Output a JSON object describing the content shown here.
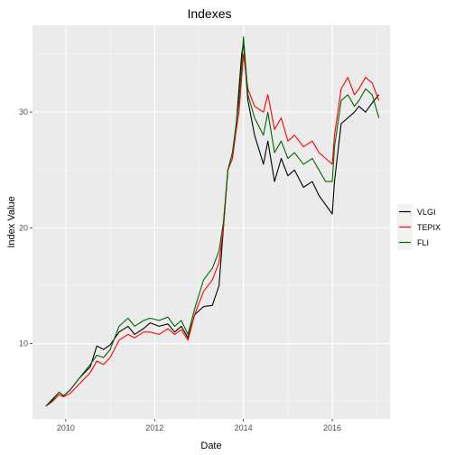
{
  "chart_data": {
    "type": "line",
    "title": "Indexes",
    "xlabel": "Date",
    "ylabel": "Index Value",
    "xlim": [
      2009.25,
      2017.3
    ],
    "ylim": [
      3.5,
      37.5
    ],
    "x_ticks": [
      2010,
      2012,
      2014,
      2016
    ],
    "x_tick_labels": [
      "2010",
      "2012",
      "2014",
      "2016"
    ],
    "y_ticks": [
      10,
      20,
      30
    ],
    "y_tick_labels": [
      "10",
      "20",
      "30"
    ],
    "grid": true,
    "background": "#ebebeb",
    "legend_position": "right",
    "series": [
      {
        "name": "VLGI",
        "color": "#000000",
        "x": [
          2009.55,
          2009.7,
          2009.85,
          2009.95,
          2010.1,
          2010.3,
          2010.55,
          2010.7,
          2010.85,
          2011.0,
          2011.2,
          2011.4,
          2011.55,
          2011.75,
          2011.9,
          2012.1,
          2012.3,
          2012.45,
          2012.6,
          2012.75,
          2012.9,
          2013.1,
          2013.3,
          2013.45,
          2013.55,
          2013.65,
          2013.75,
          2013.82,
          2013.9,
          2013.96,
          2014.0,
          2014.1,
          2014.25,
          2014.45,
          2014.55,
          2014.7,
          2014.85,
          2015.0,
          2015.15,
          2015.35,
          2015.55,
          2015.7,
          2015.85,
          2016.0,
          2016.05,
          2016.2,
          2016.35,
          2016.5,
          2016.6,
          2016.75,
          2016.9,
          2017.05
        ],
        "y": [
          4.6,
          5.2,
          5.8,
          5.5,
          6.0,
          7.0,
          8.0,
          9.8,
          9.5,
          9.9,
          11.0,
          11.5,
          10.8,
          11.3,
          11.8,
          11.5,
          11.7,
          11.0,
          11.5,
          10.5,
          12.5,
          13.2,
          13.3,
          15.0,
          20.0,
          25.0,
          26.0,
          28.0,
          32.0,
          35.0,
          36.0,
          31.0,
          28.0,
          25.5,
          27.5,
          24.0,
          26.0,
          24.5,
          25.0,
          23.5,
          24.0,
          22.8,
          22.0,
          21.2,
          24.0,
          29.0,
          29.5,
          30.0,
          30.5,
          30.0,
          30.8,
          31.5
        ]
      },
      {
        "name": "TEPIX",
        "color": "#ff0000",
        "x": [
          2009.55,
          2009.7,
          2009.85,
          2009.95,
          2010.1,
          2010.3,
          2010.55,
          2010.7,
          2010.85,
          2011.0,
          2011.2,
          2011.4,
          2011.55,
          2011.75,
          2011.9,
          2012.1,
          2012.3,
          2012.45,
          2012.6,
          2012.75,
          2012.9,
          2013.1,
          2013.3,
          2013.45,
          2013.55,
          2013.65,
          2013.75,
          2013.82,
          2013.9,
          2013.96,
          2014.0,
          2014.1,
          2014.25,
          2014.45,
          2014.55,
          2014.7,
          2014.85,
          2015.0,
          2015.15,
          2015.35,
          2015.55,
          2015.7,
          2015.85,
          2016.0,
          2016.05,
          2016.2,
          2016.35,
          2016.5,
          2016.6,
          2016.75,
          2016.9,
          2017.05
        ],
        "y": [
          4.6,
          5.0,
          5.6,
          5.4,
          5.7,
          6.5,
          7.5,
          8.5,
          8.2,
          8.8,
          10.3,
          10.8,
          10.5,
          11.0,
          11.0,
          10.8,
          11.3,
          10.8,
          11.2,
          10.3,
          12.5,
          14.5,
          15.5,
          17.0,
          20.0,
          25.0,
          26.0,
          28.0,
          30.0,
          33.0,
          35.0,
          32.0,
          30.5,
          30.0,
          31.5,
          28.5,
          29.5,
          27.5,
          28.0,
          27.0,
          27.5,
          26.5,
          26.0,
          25.5,
          28.0,
          32.0,
          33.0,
          31.5,
          32.0,
          33.0,
          32.5,
          31.0
        ]
      },
      {
        "name": "FLI",
        "color": "#006400",
        "x": [
          2009.55,
          2009.7,
          2009.85,
          2009.95,
          2010.1,
          2010.3,
          2010.55,
          2010.7,
          2010.85,
          2011.0,
          2011.2,
          2011.4,
          2011.55,
          2011.75,
          2011.9,
          2012.1,
          2012.3,
          2012.45,
          2012.6,
          2012.75,
          2012.9,
          2013.1,
          2013.3,
          2013.45,
          2013.55,
          2013.65,
          2013.75,
          2013.82,
          2013.9,
          2013.96,
          2014.0,
          2014.1,
          2014.25,
          2014.45,
          2014.55,
          2014.7,
          2014.85,
          2015.0,
          2015.15,
          2015.35,
          2015.55,
          2015.7,
          2015.85,
          2016.0,
          2016.05,
          2016.2,
          2016.35,
          2016.5,
          2016.6,
          2016.75,
          2016.9,
          2017.05
        ],
        "y": [
          4.6,
          5.1,
          5.8,
          5.5,
          6.0,
          7.0,
          8.2,
          9.0,
          8.8,
          9.5,
          11.5,
          12.2,
          11.5,
          12.0,
          12.2,
          12.0,
          12.3,
          11.5,
          12.0,
          10.8,
          13.0,
          15.5,
          16.5,
          18.0,
          20.5,
          25.0,
          26.5,
          28.5,
          31.0,
          34.0,
          36.5,
          31.5,
          29.5,
          28.0,
          30.0,
          26.5,
          27.5,
          26.0,
          26.5,
          25.5,
          26.0,
          25.0,
          24.0,
          24.0,
          27.0,
          31.0,
          31.5,
          30.5,
          31.0,
          32.0,
          31.5,
          29.5
        ]
      }
    ]
  }
}
